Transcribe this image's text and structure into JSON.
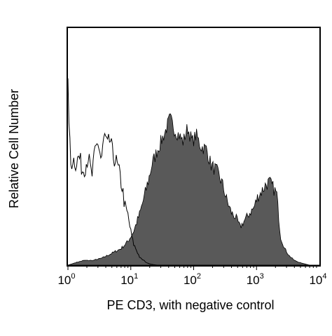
{
  "chart_data": {
    "type": "area",
    "xscale": "log",
    "xlim": [
      1,
      10000
    ],
    "xlabel": "PE CD3, with negative control",
    "ylabel": "Relative Cell Number",
    "x_ticks": [
      {
        "base": "10",
        "exp": "0",
        "value": 1
      },
      {
        "base": "10",
        "exp": "1",
        "value": 10
      },
      {
        "base": "10",
        "exp": "2",
        "value": 100
      },
      {
        "base": "10",
        "exp": "3",
        "value": 1000
      },
      {
        "base": "10",
        "exp": "4",
        "value": 10000
      }
    ],
    "grid": false,
    "legend": "none",
    "series": [
      {
        "style": "filled",
        "color": "#595959",
        "x": [
          1,
          1.3,
          1.8,
          2.5,
          3.5,
          5,
          7,
          9,
          11,
          14,
          18,
          22,
          28,
          35,
          42,
          50,
          58,
          68,
          80,
          95,
          110,
          130,
          160,
          190,
          230,
          280,
          340,
          400,
          470,
          550,
          650,
          780,
          900,
          1050,
          1200,
          1400,
          1600,
          1800,
          2100,
          2400,
          2800,
          3300,
          4000,
          5000,
          7000,
          10000
        ],
        "y": [
          0.0,
          0.01,
          0.02,
          0.02,
          0.03,
          0.05,
          0.07,
          0.1,
          0.14,
          0.22,
          0.33,
          0.43,
          0.5,
          0.56,
          0.62,
          0.57,
          0.55,
          0.52,
          0.58,
          0.52,
          0.55,
          0.5,
          0.49,
          0.42,
          0.4,
          0.35,
          0.27,
          0.22,
          0.2,
          0.16,
          0.19,
          0.22,
          0.24,
          0.29,
          0.31,
          0.34,
          0.35,
          0.33,
          0.3,
          0.12,
          0.07,
          0.04,
          0.02,
          0.01,
          0.0,
          0.0
        ]
      },
      {
        "style": "outline",
        "color": "#000000",
        "x": [
          1,
          1.1,
          1.2,
          1.35,
          1.5,
          1.7,
          1.9,
          2.1,
          2.4,
          2.7,
          3.0,
          3.4,
          3.8,
          4.2,
          4.7,
          5.2,
          5.8,
          6.5,
          7.3,
          8.0,
          9.0,
          10,
          11,
          12.5,
          14,
          16,
          18,
          20,
          23,
          26,
          30,
          40,
          60,
          100
        ],
        "y": [
          0.75,
          0.42,
          0.45,
          0.43,
          0.46,
          0.4,
          0.42,
          0.46,
          0.37,
          0.48,
          0.52,
          0.44,
          0.55,
          0.5,
          0.53,
          0.46,
          0.44,
          0.39,
          0.33,
          0.25,
          0.21,
          0.14,
          0.09,
          0.06,
          0.03,
          0.02,
          0.01,
          0.005,
          0.002,
          0.0,
          0.0,
          0.0,
          0.0,
          0.0
        ]
      }
    ]
  }
}
